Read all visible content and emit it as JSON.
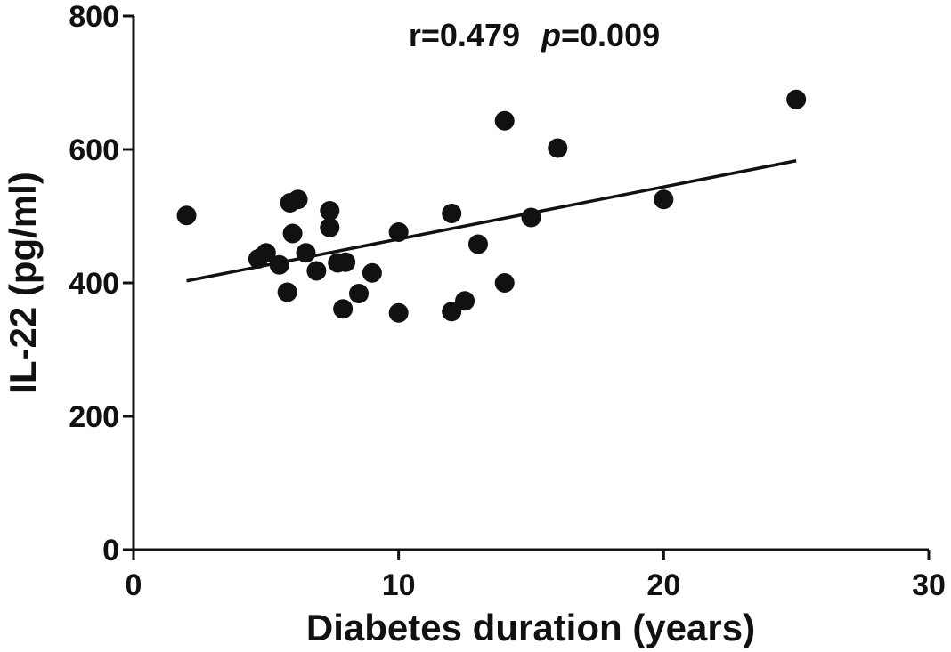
{
  "chart_data": {
    "type": "scatter",
    "title": "",
    "xlabel": "Diabetes duration (years)",
    "ylabel": "IL-22 (pg/ml)",
    "xlim": [
      0,
      30
    ],
    "ylim": [
      0,
      800
    ],
    "x_ticks": [
      0,
      10,
      20,
      30
    ],
    "y_ticks": [
      0,
      200,
      400,
      600,
      800
    ],
    "grid": false,
    "annotation": {
      "r_text": "r=0.479",
      "p_symbol": "p",
      "p_value_text": "=0.009"
    },
    "points": [
      {
        "x": 2,
        "y": 501
      },
      {
        "x": 4.7,
        "y": 436
      },
      {
        "x": 5,
        "y": 445
      },
      {
        "x": 5.5,
        "y": 427
      },
      {
        "x": 5.8,
        "y": 386
      },
      {
        "x": 5.9,
        "y": 520
      },
      {
        "x": 6,
        "y": 474
      },
      {
        "x": 6.2,
        "y": 525
      },
      {
        "x": 6.5,
        "y": 445
      },
      {
        "x": 6.9,
        "y": 418
      },
      {
        "x": 7.4,
        "y": 508
      },
      {
        "x": 7.4,
        "y": 483
      },
      {
        "x": 7.7,
        "y": 430
      },
      {
        "x": 7.9,
        "y": 361
      },
      {
        "x": 8,
        "y": 431
      },
      {
        "x": 8.5,
        "y": 384
      },
      {
        "x": 9,
        "y": 415
      },
      {
        "x": 10,
        "y": 476
      },
      {
        "x": 10,
        "y": 355
      },
      {
        "x": 12,
        "y": 504
      },
      {
        "x": 12,
        "y": 357
      },
      {
        "x": 12.5,
        "y": 373
      },
      {
        "x": 13,
        "y": 458
      },
      {
        "x": 14,
        "y": 643
      },
      {
        "x": 14,
        "y": 400
      },
      {
        "x": 15,
        "y": 498
      },
      {
        "x": 16,
        "y": 602
      },
      {
        "x": 20,
        "y": 525
      },
      {
        "x": 25,
        "y": 675
      }
    ],
    "trendline": {
      "x1": 2,
      "y1": 403,
      "x2": 25,
      "y2": 583
    },
    "point_color": "#111111"
  }
}
